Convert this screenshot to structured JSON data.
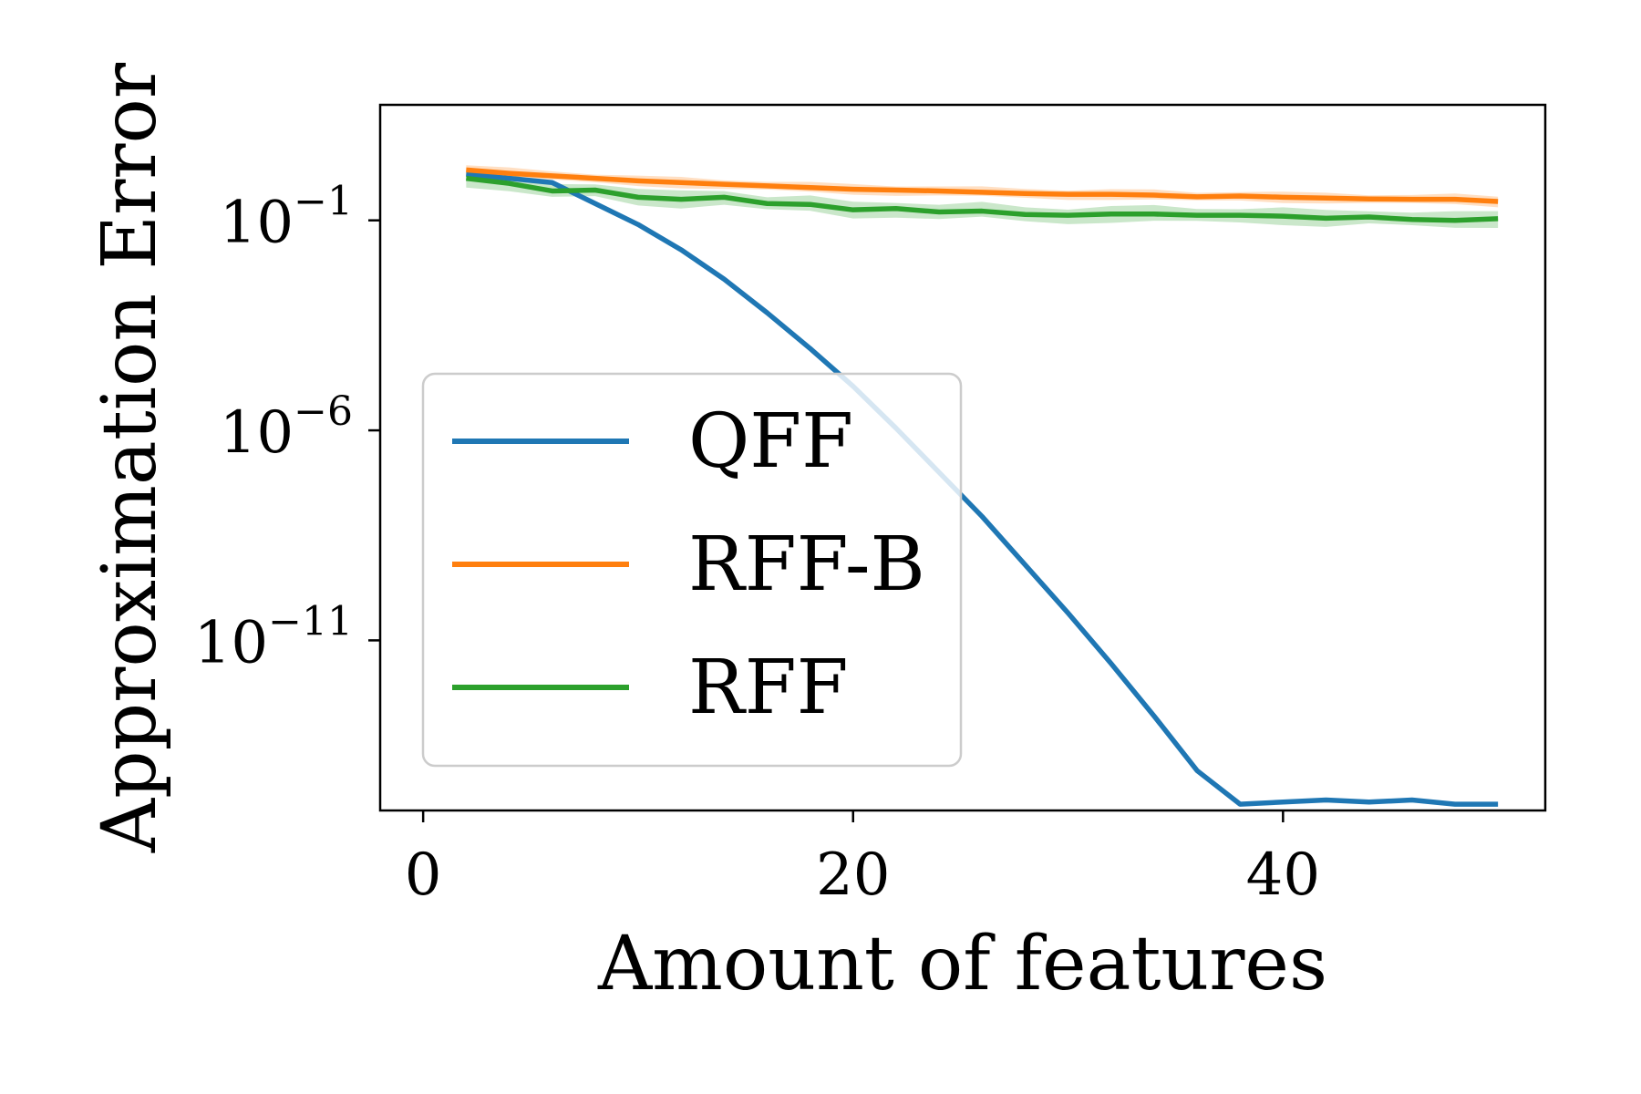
{
  "chart_data": {
    "type": "line",
    "xlabel": "Amount of features",
    "ylabel": "Approximation Error",
    "xlim": [
      -2,
      52.2
    ],
    "ylim_log10": [
      -15.05,
      1.75
    ],
    "y_scale": "log",
    "grid": false,
    "legend_placement": "center-left",
    "x_ticks": [
      {
        "value": 0,
        "label": "0"
      },
      {
        "value": 20,
        "label": "20"
      },
      {
        "value": 40,
        "label": "40"
      }
    ],
    "y_ticks": [
      {
        "log10": -1,
        "base": "10",
        "exp": "−1"
      },
      {
        "log10": -6,
        "base": "10",
        "exp": "−6"
      },
      {
        "log10": -11,
        "base": "10",
        "exp": "−11"
      }
    ],
    "x": [
      2,
      4,
      6,
      8,
      10,
      12,
      14,
      16,
      18,
      20,
      22,
      24,
      26,
      28,
      30,
      32,
      34,
      36,
      38,
      40,
      42,
      44,
      46,
      48,
      50
    ],
    "series": [
      {
        "name": "QFF",
        "color": "#1f77b4",
        "log10_values": [
          0.1,
          0.0,
          -0.1,
          -0.6,
          -1.1,
          -1.7,
          -2.4,
          -3.2,
          -4.05,
          -4.95,
          -5.95,
          -7.0,
          -8.05,
          -9.2,
          -10.35,
          -11.55,
          -12.8,
          -14.1,
          -14.9,
          -14.85,
          -14.8,
          -14.85,
          -14.8,
          -14.9,
          -14.9
        ]
      },
      {
        "name": "RFF-B",
        "color": "#ff7f0e",
        "log10_values": [
          0.2,
          0.12,
          0.06,
          0.0,
          -0.06,
          -0.1,
          -0.14,
          -0.18,
          -0.22,
          -0.26,
          -0.28,
          -0.3,
          -0.33,
          -0.36,
          -0.38,
          -0.38,
          -0.4,
          -0.44,
          -0.42,
          -0.45,
          -0.47,
          -0.49,
          -0.5,
          -0.5,
          -0.55
        ],
        "band_log10": 0.14
      },
      {
        "name": "RFF",
        "color": "#2ca02c",
        "log10_values": [
          0.0,
          -0.12,
          -0.3,
          -0.28,
          -0.45,
          -0.5,
          -0.45,
          -0.6,
          -0.62,
          -0.75,
          -0.72,
          -0.8,
          -0.78,
          -0.86,
          -0.88,
          -0.85,
          -0.85,
          -0.88,
          -0.88,
          -0.9,
          -0.95,
          -0.92,
          -0.98,
          -1.0,
          -0.96
        ],
        "band_log10": 0.22
      }
    ]
  }
}
